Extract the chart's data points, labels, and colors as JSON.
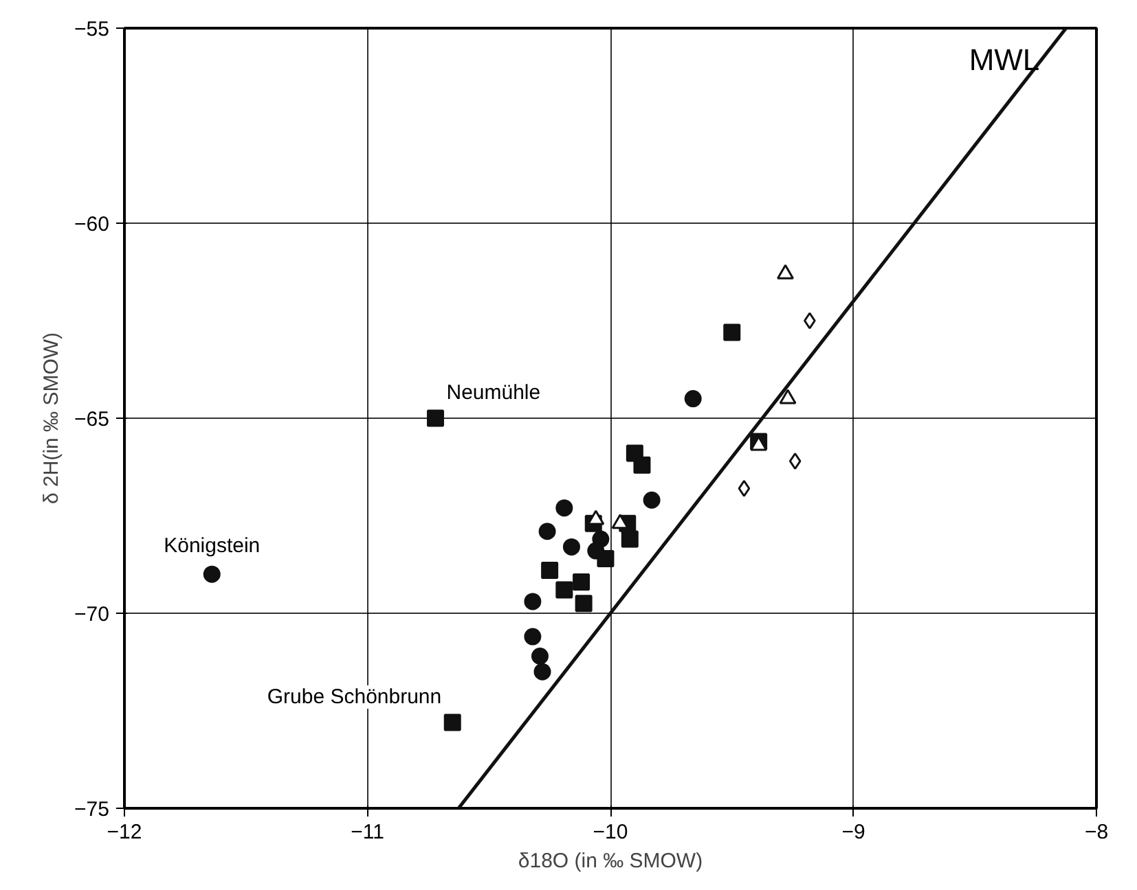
{
  "chart_data": {
    "type": "scatter",
    "xlabel": "δ18O (in ‰ SMOW)",
    "ylabel": "δ 2H(in ‰ SMOW)",
    "xlim": [
      -12,
      -8
    ],
    "ylim": [
      -75,
      -55
    ],
    "xticks": [
      -12,
      -11,
      -10,
      -9,
      -8
    ],
    "yticks": [
      -75,
      -70,
      -65,
      -60,
      -55
    ],
    "grid": true,
    "series": [
      {
        "color": "#111111",
        "marker": "circle",
        "x": [
          -11.64,
          -9.66,
          -9.83,
          -10.19,
          -10.26,
          -10.16,
          -10.04,
          -10.06,
          -10.32,
          -10.32,
          -10.29,
          -10.28
        ],
        "values": [
          -69.0,
          -64.5,
          -67.1,
          -67.3,
          -67.9,
          -68.3,
          -68.1,
          -68.4,
          -69.7,
          -70.6,
          -71.1,
          -71.5
        ]
      },
      {
        "color": "#111111",
        "marker": "square",
        "x": [
          -10.72,
          -10.65,
          -9.9,
          -9.87,
          -10.25,
          -10.02,
          -10.07,
          -9.93,
          -9.92,
          -10.19,
          -10.12,
          -10.11,
          -9.5,
          -9.39
        ],
        "values": [
          -65.0,
          -72.8,
          -65.9,
          -66.2,
          -68.9,
          -68.6,
          -67.7,
          -67.7,
          -68.1,
          -69.4,
          -69.2,
          -69.75,
          -62.8,
          -65.6
        ]
      },
      {
        "color": "#111111",
        "marker": "triangle",
        "x": [
          -9.28,
          -9.27,
          -9.39,
          -10.06,
          -9.96
        ],
        "values": [
          -61.3,
          -64.5,
          -65.7,
          -67.6,
          -67.7
        ]
      },
      {
        "color": "#111111",
        "marker": "diamond",
        "x": [
          -9.18,
          -9.24,
          -9.45
        ],
        "values": [
          -62.5,
          -66.1,
          -66.8
        ]
      },
      {
        "type": "line",
        "color": "#111111",
        "line_style": "solid",
        "x": [
          -10.625,
          -8.125
        ],
        "values": [
          -75,
          -55
        ]
      }
    ],
    "annotations": [
      "MWL",
      {
        "text": "Neumühle",
        "x": -10.72,
        "y": -65.0
      },
      {
        "text": "Königstein",
        "x": -11.64,
        "y": -69.0
      },
      {
        "text": "Grube Schönbrunn",
        "x": -10.65,
        "y": -72.8
      }
    ]
  }
}
